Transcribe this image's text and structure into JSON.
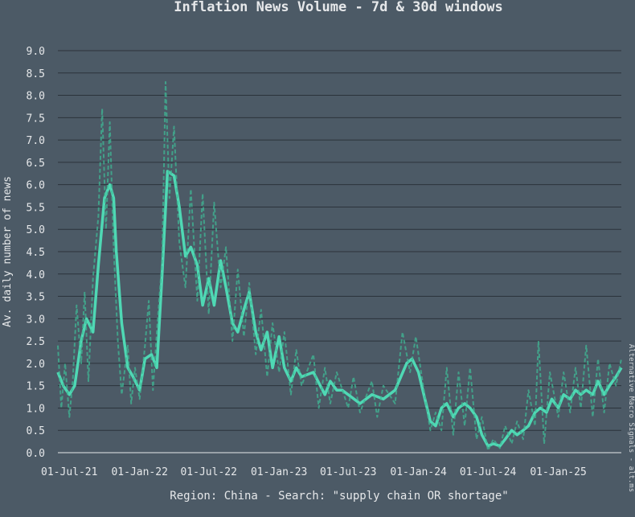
{
  "colors": {
    "background": "#4c5a66",
    "grid": "#2b333b",
    "text": "#e6e8ea",
    "line_30d": "#4fd8b4",
    "line_7d": "#3fb895"
  },
  "chart_data": {
    "type": "line",
    "title": "Inflation News Volume - 7d & 30d windows",
    "xlabel": "Region: China - Search: \"supply chain OR shortage\"",
    "ylabel": "Av. daily number of news",
    "side_note": "Alternative Macro Signals - alt.ms",
    "ylim": [
      0,
      9.0
    ],
    "yticks": [
      "0.0",
      "0.5",
      "1.0",
      "1.5",
      "2.0",
      "2.5",
      "3.0",
      "3.5",
      "4.0",
      "4.5",
      "5.0",
      "5.5",
      "6.0",
      "6.5",
      "7.0",
      "7.5",
      "8.0",
      "8.5",
      "9.0"
    ],
    "xlim": [
      "2021-06-01",
      "2025-06-15"
    ],
    "xticks": [
      {
        "date": "2021-07-01",
        "label": "01-Jul-21"
      },
      {
        "date": "2022-01-01",
        "label": "01-Jan-22"
      },
      {
        "date": "2022-07-01",
        "label": "01-Jul-22"
      },
      {
        "date": "2023-01-01",
        "label": "01-Jan-23"
      },
      {
        "date": "2023-07-01",
        "label": "01-Jul-23"
      },
      {
        "date": "2024-01-01",
        "label": "01-Jan-24"
      },
      {
        "date": "2024-07-01",
        "label": "01-Jul-24"
      },
      {
        "date": "2025-01-01",
        "label": "01-Jan-25"
      }
    ],
    "series": [
      {
        "window": "30d",
        "style": "solid",
        "points": [
          [
            "2021-06-01",
            1.8
          ],
          [
            "2021-06-15",
            1.5
          ],
          [
            "2021-07-01",
            1.3
          ],
          [
            "2021-07-15",
            1.5
          ],
          [
            "2021-08-01",
            2.5
          ],
          [
            "2021-08-15",
            3.0
          ],
          [
            "2021-09-01",
            2.7
          ],
          [
            "2021-09-15",
            4.2
          ],
          [
            "2021-10-01",
            5.7
          ],
          [
            "2021-10-15",
            6.0
          ],
          [
            "2021-10-25",
            5.7
          ],
          [
            "2021-11-01",
            4.5
          ],
          [
            "2021-11-15",
            2.9
          ],
          [
            "2021-12-01",
            1.9
          ],
          [
            "2021-12-15",
            1.7
          ],
          [
            "2022-01-01",
            1.4
          ],
          [
            "2022-01-15",
            2.1
          ],
          [
            "2022-02-01",
            2.2
          ],
          [
            "2022-02-15",
            1.9
          ],
          [
            "2022-03-01",
            4.0
          ],
          [
            "2022-03-15",
            6.3
          ],
          [
            "2022-04-01",
            6.2
          ],
          [
            "2022-04-15",
            5.5
          ],
          [
            "2022-05-01",
            4.4
          ],
          [
            "2022-05-15",
            4.6
          ],
          [
            "2022-06-01",
            4.2
          ],
          [
            "2022-06-15",
            3.3
          ],
          [
            "2022-07-01",
            3.9
          ],
          [
            "2022-07-15",
            3.3
          ],
          [
            "2022-08-01",
            4.3
          ],
          [
            "2022-08-15",
            3.7
          ],
          [
            "2022-09-01",
            2.9
          ],
          [
            "2022-09-15",
            2.7
          ],
          [
            "2022-10-01",
            3.2
          ],
          [
            "2022-10-15",
            3.6
          ],
          [
            "2022-11-01",
            2.7
          ],
          [
            "2022-11-15",
            2.3
          ],
          [
            "2022-12-01",
            2.7
          ],
          [
            "2022-12-15",
            1.9
          ],
          [
            "2023-01-01",
            2.6
          ],
          [
            "2023-01-15",
            1.9
          ],
          [
            "2023-02-01",
            1.6
          ],
          [
            "2023-02-15",
            1.9
          ],
          [
            "2023-03-01",
            1.7
          ],
          [
            "2023-04-01",
            1.8
          ],
          [
            "2023-05-01",
            1.3
          ],
          [
            "2023-05-15",
            1.6
          ],
          [
            "2023-06-01",
            1.4
          ],
          [
            "2023-06-15",
            1.4
          ],
          [
            "2023-07-01",
            1.3
          ],
          [
            "2023-08-01",
            1.1
          ],
          [
            "2023-09-01",
            1.3
          ],
          [
            "2023-10-01",
            1.2
          ],
          [
            "2023-11-01",
            1.4
          ],
          [
            "2023-12-01",
            2.0
          ],
          [
            "2023-12-15",
            2.1
          ],
          [
            "2024-01-01",
            1.8
          ],
          [
            "2024-01-15",
            1.3
          ],
          [
            "2024-02-01",
            0.7
          ],
          [
            "2024-02-15",
            0.6
          ],
          [
            "2024-03-01",
            1.0
          ],
          [
            "2024-03-15",
            1.1
          ],
          [
            "2024-04-01",
            0.8
          ],
          [
            "2024-04-15",
            1.0
          ],
          [
            "2024-05-01",
            1.1
          ],
          [
            "2024-05-15",
            1.0
          ],
          [
            "2024-06-01",
            0.8
          ],
          [
            "2024-06-15",
            0.4
          ],
          [
            "2024-07-01",
            0.15
          ],
          [
            "2024-07-15",
            0.2
          ],
          [
            "2024-08-01",
            0.15
          ],
          [
            "2024-08-15",
            0.3
          ],
          [
            "2024-09-01",
            0.5
          ],
          [
            "2024-09-15",
            0.4
          ],
          [
            "2024-10-01",
            0.5
          ],
          [
            "2024-10-15",
            0.6
          ],
          [
            "2024-11-01",
            0.9
          ],
          [
            "2024-11-15",
            1.0
          ],
          [
            "2024-12-01",
            0.9
          ],
          [
            "2024-12-15",
            1.2
          ],
          [
            "2025-01-01",
            1.0
          ],
          [
            "2025-01-15",
            1.3
          ],
          [
            "2025-02-01",
            1.2
          ],
          [
            "2025-02-15",
            1.4
          ],
          [
            "2025-03-01",
            1.3
          ],
          [
            "2025-03-15",
            1.4
          ],
          [
            "2025-04-01",
            1.3
          ],
          [
            "2025-04-15",
            1.6
          ],
          [
            "2025-05-01",
            1.3
          ],
          [
            "2025-05-15",
            1.5
          ],
          [
            "2025-06-01",
            1.7
          ],
          [
            "2025-06-15",
            1.9
          ]
        ]
      },
      {
        "window": "7d",
        "style": "dashed",
        "points": [
          [
            "2021-06-01",
            2.4
          ],
          [
            "2021-06-10",
            1.0
          ],
          [
            "2021-06-20",
            2.0
          ],
          [
            "2021-07-01",
            0.8
          ],
          [
            "2021-07-10",
            1.6
          ],
          [
            "2021-07-20",
            3.3
          ],
          [
            "2021-08-01",
            2.0
          ],
          [
            "2021-08-10",
            3.6
          ],
          [
            "2021-08-20",
            1.6
          ],
          [
            "2021-09-01",
            3.9
          ],
          [
            "2021-09-15",
            5.3
          ],
          [
            "2021-09-25",
            7.7
          ],
          [
            "2021-10-05",
            5.0
          ],
          [
            "2021-10-15",
            7.4
          ],
          [
            "2021-10-25",
            4.6
          ],
          [
            "2021-11-05",
            2.5
          ],
          [
            "2021-11-15",
            1.3
          ],
          [
            "2021-12-01",
            2.4
          ],
          [
            "2021-12-10",
            1.1
          ],
          [
            "2021-12-20",
            1.9
          ],
          [
            "2022-01-01",
            1.2
          ],
          [
            "2022-01-15",
            2.4
          ],
          [
            "2022-01-25",
            3.4
          ],
          [
            "2022-02-05",
            1.4
          ],
          [
            "2022-02-15",
            2.7
          ],
          [
            "2022-03-01",
            4.3
          ],
          [
            "2022-03-10",
            8.3
          ],
          [
            "2022-03-20",
            5.7
          ],
          [
            "2022-04-01",
            7.3
          ],
          [
            "2022-04-15",
            4.7
          ],
          [
            "2022-05-01",
            3.7
          ],
          [
            "2022-05-15",
            5.9
          ],
          [
            "2022-06-01",
            3.4
          ],
          [
            "2022-06-15",
            5.8
          ],
          [
            "2022-07-01",
            3.1
          ],
          [
            "2022-07-15",
            5.6
          ],
          [
            "2022-08-01",
            3.7
          ],
          [
            "2022-08-15",
            4.6
          ],
          [
            "2022-09-01",
            2.5
          ],
          [
            "2022-09-15",
            4.1
          ],
          [
            "2022-10-01",
            2.6
          ],
          [
            "2022-10-15",
            3.8
          ],
          [
            "2022-11-01",
            2.2
          ],
          [
            "2022-11-15",
            3.2
          ],
          [
            "2022-12-01",
            1.7
          ],
          [
            "2022-12-15",
            2.9
          ],
          [
            "2023-01-01",
            1.8
          ],
          [
            "2023-01-15",
            2.7
          ],
          [
            "2023-02-01",
            1.3
          ],
          [
            "2023-02-15",
            2.3
          ],
          [
            "2023-03-01",
            1.5
          ],
          [
            "2023-04-01",
            2.2
          ],
          [
            "2023-04-15",
            1.0
          ],
          [
            "2023-05-01",
            1.9
          ],
          [
            "2023-05-15",
            1.1
          ],
          [
            "2023-06-01",
            1.8
          ],
          [
            "2023-07-01",
            1.0
          ],
          [
            "2023-07-15",
            1.7
          ],
          [
            "2023-08-01",
            0.9
          ],
          [
            "2023-09-01",
            1.6
          ],
          [
            "2023-09-15",
            0.8
          ],
          [
            "2023-10-01",
            1.5
          ],
          [
            "2023-11-01",
            1.1
          ],
          [
            "2023-11-20",
            2.7
          ],
          [
            "2023-12-10",
            1.8
          ],
          [
            "2023-12-25",
            2.6
          ],
          [
            "2024-01-15",
            1.4
          ],
          [
            "2024-02-01",
            0.5
          ],
          [
            "2024-02-15",
            0.9
          ],
          [
            "2024-03-01",
            0.5
          ],
          [
            "2024-03-15",
            1.9
          ],
          [
            "2024-04-01",
            0.4
          ],
          [
            "2024-04-15",
            1.8
          ],
          [
            "2024-05-01",
            0.6
          ],
          [
            "2024-05-15",
            1.9
          ],
          [
            "2024-06-01",
            0.3
          ],
          [
            "2024-06-15",
            0.8
          ],
          [
            "2024-07-01",
            0.05
          ],
          [
            "2024-07-15",
            0.3
          ],
          [
            "2024-08-01",
            0.1
          ],
          [
            "2024-08-15",
            0.6
          ],
          [
            "2024-09-01",
            0.2
          ],
          [
            "2024-09-15",
            0.7
          ],
          [
            "2024-10-01",
            0.3
          ],
          [
            "2024-10-15",
            1.4
          ],
          [
            "2024-11-01",
            0.6
          ],
          [
            "2024-11-10",
            2.5
          ],
          [
            "2024-11-25",
            0.2
          ],
          [
            "2024-12-10",
            1.8
          ],
          [
            "2025-01-01",
            0.8
          ],
          [
            "2025-01-15",
            1.8
          ],
          [
            "2025-02-01",
            0.9
          ],
          [
            "2025-02-15",
            1.9
          ],
          [
            "2025-03-01",
            1.0
          ],
          [
            "2025-03-15",
            2.4
          ],
          [
            "2025-04-01",
            0.8
          ],
          [
            "2025-04-15",
            2.1
          ],
          [
            "2025-05-01",
            0.9
          ],
          [
            "2025-05-15",
            2.0
          ],
          [
            "2025-06-01",
            1.5
          ],
          [
            "2025-06-15",
            2.1
          ]
        ]
      }
    ]
  }
}
